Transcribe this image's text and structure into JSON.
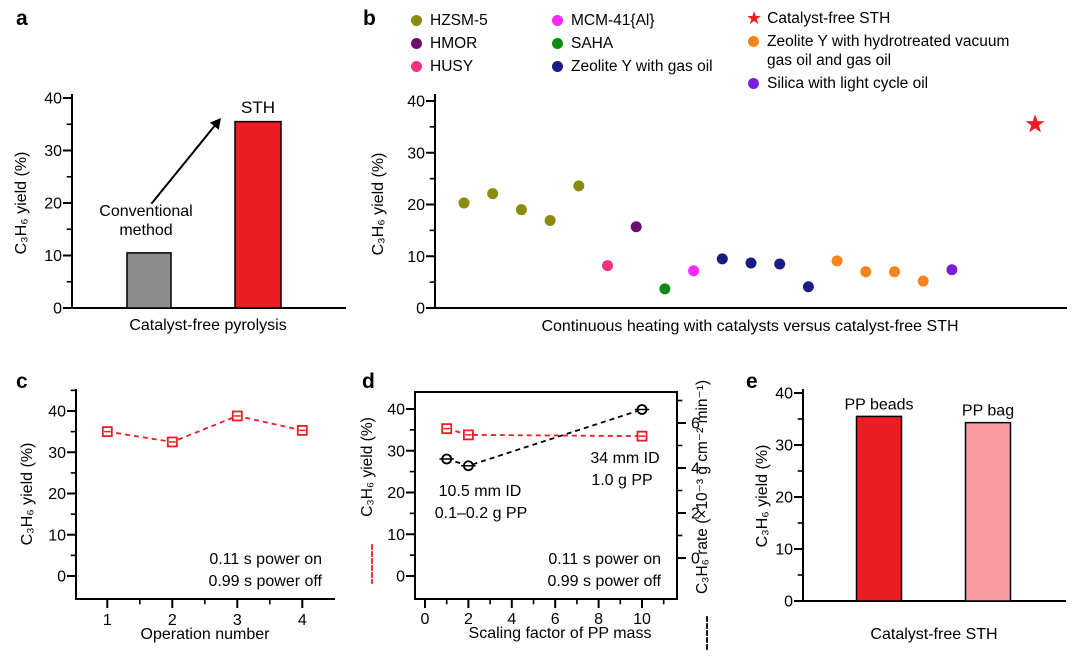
{
  "panel_labels": {
    "a": "a",
    "b": "b",
    "c": "c",
    "d": "d",
    "e": "e"
  },
  "colors": {
    "red": "#EE1C23",
    "gray_bar": "#8C8C8C",
    "pink_bar": "#F89CA2",
    "axis": "#000000"
  },
  "chart_data": [
    {
      "id": "a",
      "type": "bar",
      "categories": [
        "Conventional method",
        "STH"
      ],
      "values": [
        10.5,
        35.5
      ],
      "bar_colors": [
        "#8C8C8C",
        "#EE1C23"
      ],
      "xlabel": "Catalyst-free pyrolysis",
      "ylabel": "C₃H₆ yield (%)",
      "ylim": [
        0,
        40
      ],
      "yticks": [
        0,
        10,
        20,
        30,
        40
      ],
      "annotation_arrow": true
    },
    {
      "id": "b",
      "type": "scatter",
      "xlabel": "Continuous heating with catalysts versus catalyst-free STH",
      "ylabel": "C₃H₆ yield (%)",
      "ylim": [
        0,
        40
      ],
      "yticks": [
        0,
        10,
        20,
        30,
        40
      ],
      "legend": [
        {
          "label": "HZSM-5",
          "color": "#8A8B0F",
          "marker": "dot",
          "col": 1
        },
        {
          "label": "HMOR",
          "color": "#6B0F6D",
          "marker": "dot",
          "col": 1
        },
        {
          "label": "HUSY",
          "color": "#F43282",
          "marker": "dot",
          "col": 1
        },
        {
          "label": "MCM-41{Al}",
          "color": "#FA28FA",
          "marker": "dot",
          "col": 2
        },
        {
          "label": "SAHA",
          "color": "#0E8C12",
          "marker": "dot",
          "col": 2
        },
        {
          "label": "Zeolite Y with gas oil",
          "color": "#1B1B86",
          "marker": "dot",
          "col": 2
        },
        {
          "label": "Catalyst-free STH",
          "color": "#EE1C23",
          "marker": "star",
          "col": 3
        },
        {
          "label": "Zeolite Y with hydrotreated vacuum gas oil and gas oil",
          "color": "#F6831C",
          "marker": "dot",
          "col": 3
        },
        {
          "label": "Silica with light cycle oil",
          "color": "#7A1FD9",
          "marker": "dot",
          "col": 3
        }
      ],
      "points": [
        {
          "series": "HZSM-5",
          "x": 1,
          "y": 20.3
        },
        {
          "series": "HZSM-5",
          "x": 2,
          "y": 22.1
        },
        {
          "series": "HZSM-5",
          "x": 3,
          "y": 19.0
        },
        {
          "series": "HZSM-5",
          "x": 4,
          "y": 16.9
        },
        {
          "series": "HZSM-5",
          "x": 5,
          "y": 23.6
        },
        {
          "series": "HUSY",
          "x": 6,
          "y": 8.2
        },
        {
          "series": "HMOR",
          "x": 7,
          "y": 15.7
        },
        {
          "series": "SAHA",
          "x": 8,
          "y": 3.7
        },
        {
          "series": "MCM-41{Al}",
          "x": 9,
          "y": 7.2
        },
        {
          "series": "Zeolite Y with gas oil",
          "x": 10,
          "y": 9.5
        },
        {
          "series": "Zeolite Y with gas oil",
          "x": 11,
          "y": 8.7
        },
        {
          "series": "Zeolite Y with gas oil",
          "x": 12,
          "y": 8.5
        },
        {
          "series": "Zeolite Y with gas oil",
          "x": 13,
          "y": 4.1
        },
        {
          "series": "Zeolite Y with hydrotreated vacuum gas oil and gas oil",
          "x": 14,
          "y": 9.1
        },
        {
          "series": "Zeolite Y with hydrotreated vacuum gas oil and gas oil",
          "x": 15,
          "y": 7.0
        },
        {
          "series": "Zeolite Y with hydrotreated vacuum gas oil and gas oil",
          "x": 16,
          "y": 7.0
        },
        {
          "series": "Zeolite Y with hydrotreated vacuum gas oil and gas oil",
          "x": 17,
          "y": 5.2
        },
        {
          "series": "Silica with light cycle oil",
          "x": 18,
          "y": 7.4
        },
        {
          "series": "Catalyst-free STH",
          "x": 20.9,
          "y": 35.5
        }
      ]
    },
    {
      "id": "c",
      "type": "line",
      "x": [
        1,
        2,
        3,
        4
      ],
      "values": [
        35.0,
        32.5,
        38.8,
        35.3
      ],
      "line_color": "#EE1C23",
      "marker": "open-square",
      "xlabel": "Operation number",
      "ylabel": "C₃H₆ yield (%)",
      "xticks": [
        1,
        2,
        3,
        4
      ],
      "yticks": [
        0,
        10,
        20,
        30,
        40
      ],
      "ylim": [
        0,
        40
      ],
      "annotations": [
        "0.11 s power on",
        "0.99 s power off"
      ]
    },
    {
      "id": "d",
      "type": "dual-line",
      "xlabel": "Scaling factor of PP mass",
      "xticks": [
        0,
        2,
        4,
        6,
        8,
        10
      ],
      "ylabel_left": "C₃H₆ yield (%)",
      "ylabel_right": "C₃H₆ rate (×10⁻³ g cm⁻² min⁻¹)",
      "yticks_left": [
        0,
        10,
        20,
        30,
        40
      ],
      "yticks_right": [
        0,
        2,
        4,
        6
      ],
      "ylim_left": [
        0,
        40
      ],
      "ylim_right": [
        0,
        7
      ],
      "x": [
        1,
        2,
        10
      ],
      "series": [
        {
          "name": "C₃H₆ yield (%)",
          "axis": "left",
          "color": "#EE1C23",
          "marker": "square",
          "values": [
            35.3,
            33.8,
            33.5
          ]
        },
        {
          "name": "C₃H₆ rate (×10⁻³ g cm⁻² min⁻¹)",
          "axis": "right",
          "color": "#000000",
          "marker": "circle",
          "values": [
            4.4,
            4.1,
            6.6
          ]
        }
      ],
      "annotations": [
        "34 mm ID",
        "1.0 g PP",
        "10.5 mm ID",
        "0.1–0.2 g PP",
        "0.11 s power on",
        "0.99 s power off"
      ]
    },
    {
      "id": "e",
      "type": "bar",
      "categories": [
        "PP beads",
        "PP bag"
      ],
      "values": [
        35.5,
        34.3
      ],
      "bar_colors": [
        "#EE1C23",
        "#F89CA2"
      ],
      "xlabel": "Catalyst-free STH",
      "ylabel": "C₃H₆ yield (%)",
      "ylim": [
        0,
        40
      ],
      "yticks": [
        0,
        10,
        20,
        30,
        40
      ]
    }
  ]
}
